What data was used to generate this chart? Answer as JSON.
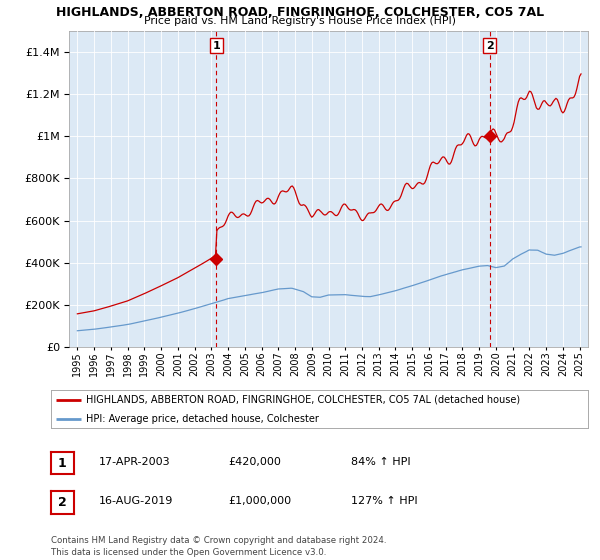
{
  "title_line1": "HIGHLANDS, ABBERTON ROAD, FINGRINGHOE, COLCHESTER, CO5 7AL",
  "title_line2": "Price paid vs. HM Land Registry's House Price Index (HPI)",
  "legend_red": "HIGHLANDS, ABBERTON ROAD, FINGRINGHOE, COLCHESTER, CO5 7AL (detached house)",
  "legend_blue": "HPI: Average price, detached house, Colchester",
  "footnote": "Contains HM Land Registry data © Crown copyright and database right 2024.\nThis data is licensed under the Open Government Licence v3.0.",
  "sale1": {
    "label": "1",
    "date": "17-APR-2003",
    "price": 420000,
    "hpi_pct": "84% ↑ HPI",
    "x": 2003.29
  },
  "sale2": {
    "label": "2",
    "date": "16-AUG-2019",
    "price": 1000000,
    "hpi_pct": "127% ↑ HPI",
    "x": 2019.62
  },
  "ylim": [
    0,
    1500000
  ],
  "xlim_start": 1994.5,
  "xlim_end": 2025.5,
  "background_color": "#ffffff",
  "plot_bg_color": "#dce9f5",
  "grid_color": "#ffffff",
  "red_color": "#cc0000",
  "blue_color": "#6699cc",
  "dashed_color": "#cc0000"
}
